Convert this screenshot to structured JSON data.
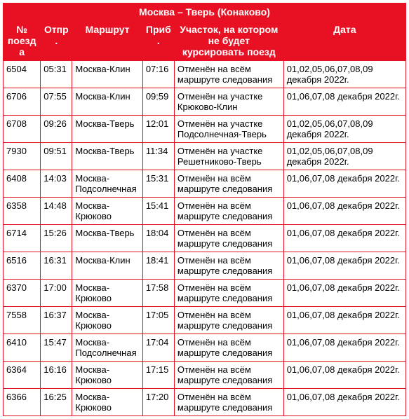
{
  "title": "Москва – Тверь (Конаково)",
  "headers": {
    "train_no": "№ поезда",
    "departure": "Отпр.",
    "route": "Маршрут",
    "arrival": "Приб.",
    "section": "Участок, на котором не будет курсировать поезд",
    "date": "Дата"
  },
  "rows": [
    {
      "train_no": "6504",
      "departure": "05:31",
      "route": "Москва-Клин",
      "arrival": "07:16",
      "section": "Отменён на всём маршруте следования",
      "date": "01,02,05,06,07,08,09 декабря 2022г."
    },
    {
      "train_no": "6706",
      "departure": "07:55",
      "route": "Москва-Клин",
      "arrival": "09:59",
      "section": "Отменён на участке Крюково-Клин",
      "date": "01,06,07,08 декабря 2022г."
    },
    {
      "train_no": "6708",
      "departure": "09:26",
      "route": "Москва-Тверь",
      "arrival": "12:01",
      "section": "Отменён на участке Подсолнечная-Тверь",
      "date": "01,02,05,06,07,08,09 декабря 2022г."
    },
    {
      "train_no": "7930",
      "departure": "09:51",
      "route": "Москва-Тверь",
      "arrival": "11:34",
      "section": "Отменён на участке Решетниково-Тверь",
      "date": "01,02,05,06,07,08,09 декабря 2022г."
    },
    {
      "train_no": "6408",
      "departure": "14:03",
      "route": "Москва-Подсолнечная",
      "arrival": "15:31",
      "section": "Отменён на всём маршруте следования",
      "date": "01,06,07,08 декабря 2022г."
    },
    {
      "train_no": "6358",
      "departure": "14:48",
      "route": "Москва-Крюково",
      "arrival": "15:41",
      "section": "Отменён на всём маршруте следования",
      "date": "01,06,07,08 декабря 2022г."
    },
    {
      "train_no": "6714",
      "departure": "15:26",
      "route": "Москва-Тверь",
      "arrival": "18:04",
      "section": "Отменён на всём маршруте следования",
      "date": "01,06,07,08 декабря 2022г."
    },
    {
      "train_no": "6516",
      "departure": "16:31",
      "route": "Москва-Клин",
      "arrival": "18:41",
      "section": "Отменён на всём маршруте следования",
      "date": "01,06,07,08 декабря 2022г."
    },
    {
      "train_no": "6370",
      "departure": "17:00",
      "route": "Москва-Крюково",
      "arrival": "17:58",
      "section": "Отменён на всём маршруте следования",
      "date": "01,06,07,08 декабря 2022г."
    },
    {
      "train_no": "7558",
      "departure": "16:37",
      "route": "Москва-Крюково",
      "arrival": "17:05",
      "section": "Отменён на всём маршруте следования",
      "date": "01,06,07,08 декабря 2022г."
    },
    {
      "train_no": "6410",
      "departure": "15:47",
      "route": "Москва-Подсолнечная",
      "arrival": "17:04",
      "section": "Отменён на всём маршруте следования",
      "date": "01,06,07,08 декабря 2022г."
    },
    {
      "train_no": "6364",
      "departure": "16:16",
      "route": "Москва-Крюково",
      "arrival": "17:15",
      "section": "Отменён на всём маршруте следования",
      "date": "01,06,07,08 декабря 2022г."
    },
    {
      "train_no": "6366",
      "departure": "16:25",
      "route": "Москва-Крюково",
      "arrival": "17:20",
      "section": "Отменён на всём маршруте следования",
      "date": "01,06,07,08 декабря 2022г."
    }
  ],
  "colors": {
    "header_bg": "#e81123",
    "header_fg": "#ffffff",
    "border": "#e81123",
    "cell_bg": "#ffffff",
    "cell_fg": "#000000"
  }
}
